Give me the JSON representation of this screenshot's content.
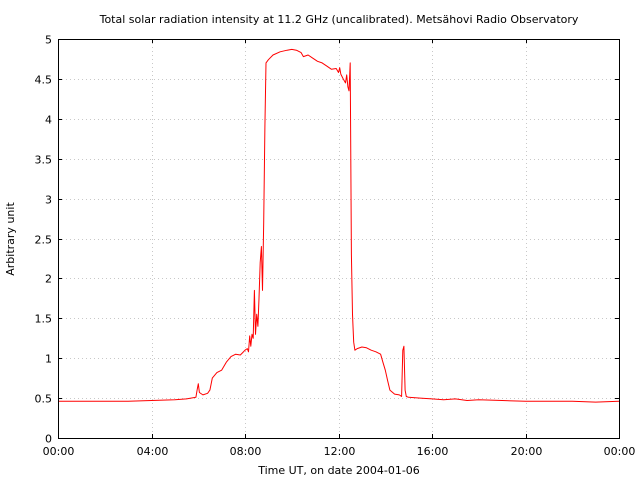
{
  "chart_data": {
    "type": "line",
    "title": "Total solar radiation intensity at 11.2 GHz (uncalibrated). Metsähovi Radio Observatory",
    "xlabel": "Time UT, on date 2004-01-06",
    "ylabel": "Arbitrary unit",
    "xlim": [
      0,
      24
    ],
    "ylim": [
      0,
      5
    ],
    "grid": true,
    "line_color": "#ff0000",
    "x_ticks": [
      {
        "value": 0,
        "label": "00:00"
      },
      {
        "value": 4,
        "label": "04:00"
      },
      {
        "value": 8,
        "label": "08:00"
      },
      {
        "value": 12,
        "label": "12:00"
      },
      {
        "value": 16,
        "label": "16:00"
      },
      {
        "value": 20,
        "label": "20:00"
      },
      {
        "value": 24,
        "label": "00:00"
      }
    ],
    "y_ticks": [
      {
        "value": 0,
        "label": "0"
      },
      {
        "value": 0.5,
        "label": "0.5"
      },
      {
        "value": 1,
        "label": "1"
      },
      {
        "value": 1.5,
        "label": "1.5"
      },
      {
        "value": 2,
        "label": "2"
      },
      {
        "value": 2.5,
        "label": "2.5"
      },
      {
        "value": 3,
        "label": "3"
      },
      {
        "value": 3.5,
        "label": "3.5"
      },
      {
        "value": 4,
        "label": "4"
      },
      {
        "value": 4.5,
        "label": "4.5"
      },
      {
        "value": 5,
        "label": "5"
      }
    ],
    "series": [
      {
        "x": [
          0,
          1,
          2,
          3,
          4,
          5,
          5.5,
          5.9,
          5.95,
          6.0,
          6.05,
          6.2,
          6.4,
          6.5,
          6.6,
          6.8,
          7.0,
          7.2,
          7.4,
          7.6,
          7.8,
          7.9,
          8.0,
          8.1,
          8.15,
          8.2,
          8.25,
          8.3,
          8.35,
          8.4,
          8.45,
          8.5,
          8.55,
          8.6,
          8.65,
          8.7,
          8.75,
          8.8,
          8.85,
          8.9,
          9.0,
          9.2,
          9.5,
          9.8,
          10.0,
          10.2,
          10.4,
          10.5,
          10.7,
          10.9,
          11.1,
          11.3,
          11.5,
          11.7,
          11.9,
          12.0,
          12.05,
          12.1,
          12.2,
          12.3,
          12.35,
          12.4,
          12.45,
          12.5,
          12.55,
          12.6,
          12.62,
          12.65,
          12.7,
          12.8,
          13.0,
          13.2,
          13.4,
          13.6,
          13.8,
          13.9,
          14.0,
          14.1,
          14.2,
          14.4,
          14.6,
          14.7,
          14.75,
          14.8,
          14.85,
          14.9,
          15.0,
          15.5,
          16.0,
          16.5,
          17.0,
          17.5,
          18.0,
          19.0,
          20.0,
          21.0,
          22.0,
          23.0,
          24.0
        ],
        "y": [
          0.46,
          0.46,
          0.46,
          0.46,
          0.47,
          0.48,
          0.49,
          0.51,
          0.6,
          0.68,
          0.57,
          0.54,
          0.56,
          0.6,
          0.75,
          0.82,
          0.85,
          0.95,
          1.02,
          1.05,
          1.04,
          1.07,
          1.1,
          1.12,
          1.08,
          1.28,
          1.15,
          1.3,
          1.25,
          1.85,
          1.3,
          1.55,
          1.4,
          1.75,
          2.2,
          2.4,
          1.85,
          2.7,
          3.9,
          4.7,
          4.74,
          4.8,
          4.84,
          4.86,
          4.87,
          4.86,
          4.83,
          4.78,
          4.8,
          4.76,
          4.72,
          4.7,
          4.66,
          4.62,
          4.63,
          4.58,
          4.64,
          4.56,
          4.5,
          4.45,
          4.55,
          4.4,
          4.35,
          4.7,
          2.3,
          1.55,
          1.4,
          1.2,
          1.1,
          1.12,
          1.14,
          1.13,
          1.1,
          1.08,
          1.05,
          0.95,
          0.85,
          0.72,
          0.6,
          0.55,
          0.54,
          0.52,
          1.1,
          1.15,
          0.6,
          0.52,
          0.51,
          0.5,
          0.49,
          0.48,
          0.49,
          0.47,
          0.48,
          0.47,
          0.46,
          0.46,
          0.46,
          0.45,
          0.46
        ]
      }
    ]
  }
}
